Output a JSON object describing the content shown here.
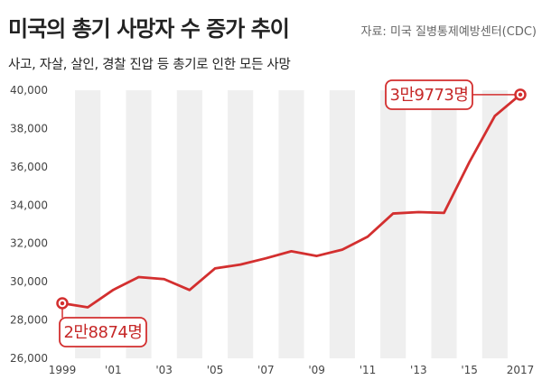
{
  "header": {
    "title": "미국의 총기 사망자 수 증가 추이",
    "source": "자료: 미국 질병통제예방센터(CDC)",
    "subtitle": "사고, 자살, 살인, 경찰 진압 등 총기로 인한 모든 사망"
  },
  "colors": {
    "line": "#d32f2f",
    "stripe": "#efefef",
    "callout_border": "#d32f2f",
    "callout_text": "#c62828"
  },
  "chart_data": {
    "type": "line",
    "title": "미국의 총기 사망자 수 증가 추이",
    "subtitle": "사고, 자살, 살인, 경찰 진압 등 총기로 인한 모든 사망",
    "xlabel": "",
    "ylabel": "",
    "x": [
      1999,
      2000,
      2001,
      2002,
      2003,
      2004,
      2005,
      2006,
      2007,
      2008,
      2009,
      2010,
      2011,
      2012,
      2013,
      2014,
      2015,
      2016,
      2017
    ],
    "xtick_labels": [
      "1999",
      "'01",
      "'03",
      "'05",
      "'07",
      "'09",
      "'11",
      "'13",
      "'15",
      "2017"
    ],
    "xtick_values": [
      1999,
      2001,
      2003,
      2005,
      2007,
      2009,
      2011,
      2013,
      2015,
      2017
    ],
    "ylim": [
      26000,
      40000
    ],
    "yticks": [
      26000,
      28000,
      30000,
      32000,
      34000,
      36000,
      38000,
      40000
    ],
    "ytick_labels": [
      "26,000",
      "28,000",
      "30,000",
      "32,000",
      "34,000",
      "36,000",
      "38,000",
      "40,000"
    ],
    "grid": "alternating vertical stripes",
    "series": [
      {
        "values": [
          28874,
          28663,
          29573,
          30242,
          30136,
          29569,
          30694,
          30896,
          31224,
          31593,
          31347,
          31672,
          32351,
          33563,
          33636,
          33594,
          36252,
          38658,
          39773
        ]
      }
    ],
    "annotations": [
      {
        "x": 1999,
        "y": 28874,
        "text": "2만8874명",
        "position": "below"
      },
      {
        "x": 2017,
        "y": 39773,
        "text": "3만9773명",
        "position": "left"
      }
    ]
  }
}
